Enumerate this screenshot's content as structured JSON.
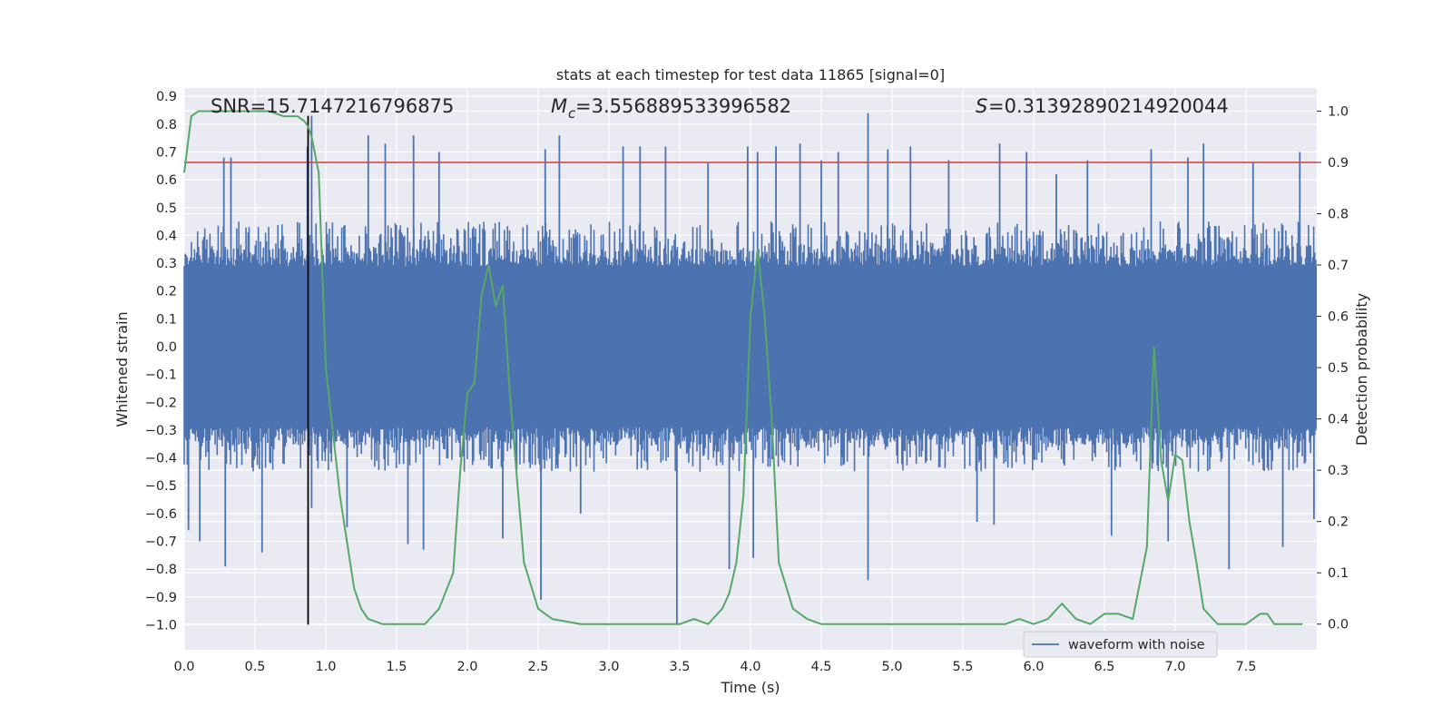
{
  "chart_data": {
    "type": "line",
    "title": "stats at each timestep for test data 11865 [signal=0]",
    "xlabel": "Time (s)",
    "ylabel": "Whitened strain",
    "ylabel_right": "Detection probability",
    "xlim": [
      0.0,
      8.0
    ],
    "ylim": [
      -1.09,
      0.93
    ],
    "ylim_right": [
      -0.05,
      1.045
    ],
    "x_ticks": [
      "0.0",
      "0.5",
      "1.0",
      "1.5",
      "2.0",
      "2.5",
      "3.0",
      "3.5",
      "4.0",
      "4.5",
      "5.0",
      "5.5",
      "6.0",
      "6.5",
      "7.0",
      "7.5"
    ],
    "y_ticks": [
      "0.9",
      "0.8",
      "0.7",
      "0.6",
      "0.5",
      "0.4",
      "0.3",
      "0.2",
      "0.1",
      "0.0",
      "-0.1",
      "-0.2",
      "-0.3",
      "-0.4",
      "-0.5",
      "-0.6",
      "-0.7",
      "-0.8",
      "-0.9",
      "-1.0"
    ],
    "y_ticks_right": [
      "1.0",
      "0.9",
      "0.8",
      "0.7",
      "0.6",
      "0.5",
      "0.4",
      "0.3",
      "0.2",
      "0.1",
      "0.0"
    ],
    "annotations": {
      "snr": "SNR=15.7147216796875",
      "mc": "=3.556889533996582",
      "s": "=0.31392890214920044"
    },
    "legend": {
      "label": "waveform with noise",
      "placement": "lower-right"
    },
    "threshold": {
      "y_right": 0.9,
      "color": "#c44e52"
    },
    "marker_line": {
      "x": 0.875,
      "y_from": -1.0,
      "y_to": 0.83,
      "color": "#000000"
    },
    "series": [
      {
        "name": "waveform with noise",
        "axis": "left",
        "color": "#4c72b0",
        "note_amplitude": {
          "core": 0.29,
          "typical_peak": 0.45,
          "max": 0.84,
          "min": -1.0
        },
        "spikes": [
          [
            0.28,
            0.68
          ],
          [
            0.33,
            0.68
          ],
          [
            0.29,
            -0.79
          ],
          [
            0.55,
            -0.74
          ],
          [
            0.03,
            -0.66
          ],
          [
            0.11,
            -0.7
          ],
          [
            0.87,
            0.72
          ],
          [
            0.9,
            -0.58
          ],
          [
            0.9,
            0.83
          ],
          [
            1.15,
            -0.65
          ],
          [
            1.3,
            0.76
          ],
          [
            1.42,
            0.73
          ],
          [
            1.62,
            0.76
          ],
          [
            1.58,
            -0.71
          ],
          [
            1.69,
            -0.73
          ],
          [
            1.8,
            0.7
          ],
          [
            2.25,
            -0.69
          ],
          [
            2.52,
            -0.91
          ],
          [
            2.55,
            0.71
          ],
          [
            2.65,
            0.76
          ],
          [
            2.8,
            -0.6
          ],
          [
            3.1,
            0.72
          ],
          [
            3.22,
            0.72
          ],
          [
            3.48,
            -1.0
          ],
          [
            3.4,
            0.72
          ],
          [
            3.7,
            0.66
          ],
          [
            3.85,
            -0.8
          ],
          [
            3.98,
            0.72
          ],
          [
            4.05,
            0.7
          ],
          [
            4.02,
            -0.76
          ],
          [
            4.18,
            0.72
          ],
          [
            4.35,
            0.73
          ],
          [
            4.5,
            0.67
          ],
          [
            4.62,
            0.7
          ],
          [
            4.83,
            0.84
          ],
          [
            4.83,
            -0.84
          ],
          [
            4.97,
            0.71
          ],
          [
            5.13,
            0.72
          ],
          [
            5.4,
            0.67
          ],
          [
            5.6,
            -0.63
          ],
          [
            5.72,
            -0.64
          ],
          [
            5.76,
            0.73
          ],
          [
            5.95,
            0.7
          ],
          [
            6.16,
            0.62
          ],
          [
            6.38,
            0.67
          ],
          [
            6.55,
            -0.68
          ],
          [
            6.83,
            0.71
          ],
          [
            6.95,
            -0.7
          ],
          [
            7.09,
            0.68
          ],
          [
            7.2,
            0.73
          ],
          [
            7.38,
            -0.8
          ],
          [
            7.55,
            0.66
          ],
          [
            7.76,
            -0.72
          ],
          [
            7.88,
            0.7
          ],
          [
            7.98,
            -0.62
          ]
        ]
      },
      {
        "name": "",
        "axis": "right",
        "color": "#55a868",
        "x": [
          0.0,
          0.05,
          0.1,
          0.15,
          0.2,
          0.3,
          0.4,
          0.5,
          0.6,
          0.7,
          0.75,
          0.8,
          0.85,
          0.875,
          0.9,
          0.95,
          1.0,
          1.1,
          1.2,
          1.25,
          1.3,
          1.4,
          1.5,
          1.6,
          1.7,
          1.8,
          1.9,
          1.95,
          2.0,
          2.05,
          2.1,
          2.15,
          2.2,
          2.25,
          2.3,
          2.4,
          2.5,
          2.6,
          2.8,
          3.0,
          3.2,
          3.4,
          3.5,
          3.6,
          3.7,
          3.8,
          3.85,
          3.9,
          3.95,
          4.0,
          4.05,
          4.1,
          4.15,
          4.2,
          4.3,
          4.4,
          4.5,
          4.6,
          4.8,
          5.0,
          5.2,
          5.4,
          5.6,
          5.8,
          5.9,
          6.0,
          6.1,
          6.2,
          6.3,
          6.4,
          6.5,
          6.6,
          6.7,
          6.8,
          6.85,
          6.9,
          6.95,
          7.0,
          7.05,
          7.1,
          7.15,
          7.2,
          7.3,
          7.4,
          7.5,
          7.6,
          7.65,
          7.7,
          7.8,
          7.9
        ],
        "values": [
          0.88,
          0.99,
          1.0,
          1.0,
          1.0,
          1.0,
          1.0,
          1.0,
          1.0,
          0.99,
          0.99,
          0.99,
          0.98,
          0.97,
          0.95,
          0.88,
          0.5,
          0.25,
          0.07,
          0.03,
          0.01,
          0.0,
          0.0,
          0.0,
          0.0,
          0.03,
          0.1,
          0.3,
          0.45,
          0.47,
          0.64,
          0.7,
          0.62,
          0.66,
          0.45,
          0.12,
          0.03,
          0.01,
          0.0,
          0.0,
          0.0,
          0.0,
          0.0,
          0.01,
          0.0,
          0.03,
          0.06,
          0.12,
          0.25,
          0.6,
          0.73,
          0.6,
          0.4,
          0.12,
          0.03,
          0.01,
          0.0,
          0.0,
          0.0,
          0.0,
          0.0,
          0.0,
          0.0,
          0.0,
          0.01,
          0.0,
          0.01,
          0.04,
          0.01,
          0.0,
          0.02,
          0.02,
          0.01,
          0.15,
          0.54,
          0.32,
          0.24,
          0.33,
          0.32,
          0.2,
          0.12,
          0.03,
          0.0,
          0.0,
          0.0,
          0.02,
          0.02,
          0.0,
          0.0,
          0.0
        ]
      }
    ],
    "style": {
      "background": "#eaeaf2",
      "grid": true,
      "grid_color": "#ffffff",
      "text_color": "#262626"
    }
  }
}
